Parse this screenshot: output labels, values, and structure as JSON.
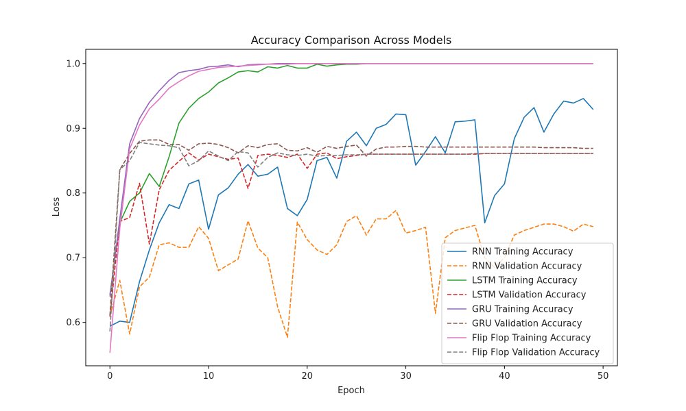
{
  "chart_data": {
    "type": "line",
    "title": "Accuracy Comparison Across Models",
    "xlabel": "Epoch",
    "ylabel": "Loss",
    "xlim": [
      -2.45,
      51.45
    ],
    "ylim": [
      0.533,
      1.022
    ],
    "xticks": [
      0,
      10,
      20,
      30,
      40,
      50
    ],
    "yticks": [
      0.6,
      0.7,
      0.8,
      0.9,
      1.0
    ],
    "ytick_labels": [
      "0.6",
      "0.7",
      "0.8",
      "0.9",
      "1.0"
    ],
    "grid": false,
    "legend_position": "bottom-right",
    "series": [
      {
        "name": "RNN Training Accuracy",
        "color": "#1f77b4",
        "dash": "solid",
        "values": [
          0.594,
          0.602,
          0.6,
          0.663,
          0.712,
          0.754,
          0.782,
          0.776,
          0.814,
          0.82,
          0.744,
          0.797,
          0.808,
          0.829,
          0.844,
          0.826,
          0.829,
          0.84,
          0.776,
          0.765,
          0.79,
          0.85,
          0.855,
          0.823,
          0.88,
          0.894,
          0.873,
          0.9,
          0.906,
          0.922,
          0.921,
          0.843,
          0.864,
          0.887,
          0.862,
          0.91,
          0.911,
          0.913,
          0.754,
          0.796,
          0.814,
          0.884,
          0.917,
          0.932,
          0.894,
          0.922,
          0.942,
          0.939,
          0.946,
          0.929
        ]
      },
      {
        "name": "RNN Validation Accuracy",
        "color": "#ff7f0e",
        "dash": "dashed",
        "values": [
          0.61,
          0.665,
          0.582,
          0.655,
          0.67,
          0.72,
          0.723,
          0.716,
          0.716,
          0.748,
          0.73,
          0.68,
          0.689,
          0.698,
          0.757,
          0.715,
          0.7,
          0.624,
          0.577,
          0.755,
          0.728,
          0.712,
          0.705,
          0.72,
          0.756,
          0.765,
          0.735,
          0.76,
          0.76,
          0.773,
          0.738,
          0.742,
          0.747,
          0.614,
          0.731,
          0.742,
          0.746,
          0.75,
          0.7,
          0.685,
          0.7,
          0.735,
          0.742,
          0.747,
          0.752,
          0.752,
          0.748,
          0.741,
          0.752,
          0.748
        ]
      },
      {
        "name": "LSTM Training Accuracy",
        "color": "#2ca02c",
        "dash": "solid",
        "values": [
          0.643,
          0.754,
          0.787,
          0.8,
          0.83,
          0.81,
          0.856,
          0.908,
          0.931,
          0.946,
          0.956,
          0.97,
          0.978,
          0.987,
          0.989,
          0.987,
          0.995,
          0.993,
          0.997,
          0.993,
          0.993,
          0.999,
          0.996,
          0.998,
          0.999,
          0.999,
          1.0,
          1.0,
          1.0,
          1.0,
          1.0,
          1.0,
          1.0,
          1.0,
          1.0,
          1.0,
          1.0,
          1.0,
          1.0,
          1.0,
          1.0,
          1.0,
          1.0,
          1.0,
          1.0,
          1.0,
          1.0,
          1.0,
          1.0,
          1.0
        ]
      },
      {
        "name": "LSTM Validation Accuracy",
        "color": "#d62728",
        "dash": "dashed",
        "values": [
          0.609,
          0.756,
          0.762,
          0.815,
          0.721,
          0.805,
          0.835,
          0.849,
          0.862,
          0.851,
          0.86,
          0.856,
          0.852,
          0.854,
          0.807,
          0.858,
          0.86,
          0.858,
          0.855,
          0.86,
          0.838,
          0.86,
          0.862,
          0.853,
          0.856,
          0.858,
          0.86,
          0.86,
          0.86,
          0.86,
          0.86,
          0.86,
          0.86,
          0.86,
          0.86,
          0.86,
          0.86,
          0.86,
          0.861,
          0.861,
          0.861,
          0.861,
          0.861,
          0.861,
          0.861,
          0.861,
          0.861,
          0.861,
          0.861,
          0.861
        ]
      },
      {
        "name": "GRU Training Accuracy",
        "color": "#9467bd",
        "dash": "solid",
        "values": [
          0.64,
          0.76,
          0.876,
          0.915,
          0.94,
          0.958,
          0.974,
          0.986,
          0.989,
          0.991,
          0.995,
          0.996,
          0.998,
          0.995,
          0.998,
          0.999,
          0.999,
          1.0,
          1.0,
          1.0,
          1.0,
          1.0,
          1.0,
          1.0,
          1.0,
          1.0,
          1.0,
          1.0,
          1.0,
          1.0,
          1.0,
          1.0,
          1.0,
          1.0,
          1.0,
          1.0,
          1.0,
          1.0,
          1.0,
          1.0,
          1.0,
          1.0,
          1.0,
          1.0,
          1.0,
          1.0,
          1.0,
          1.0,
          1.0,
          1.0
        ]
      },
      {
        "name": "GRU Validation Accuracy",
        "color": "#8c564b",
        "dash": "dashed",
        "values": [
          0.611,
          0.836,
          0.861,
          0.88,
          0.882,
          0.882,
          0.875,
          0.875,
          0.866,
          0.876,
          0.877,
          0.875,
          0.87,
          0.862,
          0.873,
          0.87,
          0.875,
          0.876,
          0.866,
          0.865,
          0.87,
          0.863,
          0.872,
          0.869,
          0.872,
          0.874,
          0.857,
          0.868,
          0.871,
          0.871,
          0.872,
          0.872,
          0.871,
          0.871,
          0.871,
          0.871,
          0.871,
          0.871,
          0.871,
          0.871,
          0.871,
          0.871,
          0.871,
          0.871,
          0.87,
          0.87,
          0.87,
          0.87,
          0.869,
          0.869
        ]
      },
      {
        "name": "Flip Flop Training Accuracy",
        "color": "#e377c2",
        "dash": "solid",
        "values": [
          0.553,
          0.745,
          0.868,
          0.905,
          0.93,
          0.945,
          0.962,
          0.972,
          0.981,
          0.988,
          0.991,
          0.994,
          0.995,
          0.996,
          0.997,
          0.998,
          0.999,
          0.999,
          0.999,
          1.0,
          1.0,
          1.0,
          1.0,
          1.0,
          1.0,
          1.0,
          1.0,
          1.0,
          1.0,
          1.0,
          1.0,
          1.0,
          1.0,
          1.0,
          1.0,
          1.0,
          1.0,
          1.0,
          1.0,
          1.0,
          1.0,
          1.0,
          1.0,
          1.0,
          1.0,
          1.0,
          1.0,
          1.0,
          1.0,
          1.0
        ]
      },
      {
        "name": "Flip Flop Validation Accuracy",
        "color": "#7f7f7f",
        "dash": "dashed",
        "values": [
          0.586,
          0.836,
          0.85,
          0.878,
          0.876,
          0.874,
          0.873,
          0.87,
          0.842,
          0.85,
          0.865,
          0.857,
          0.85,
          0.864,
          0.862,
          0.84,
          0.855,
          0.862,
          0.859,
          0.858,
          0.86,
          0.857,
          0.858,
          0.858,
          0.859,
          0.859,
          0.86,
          0.86,
          0.86,
          0.86,
          0.86,
          0.86,
          0.86,
          0.86,
          0.86,
          0.86,
          0.86,
          0.861,
          0.861,
          0.861,
          0.861,
          0.861,
          0.861,
          0.861,
          0.861,
          0.861,
          0.861,
          0.861,
          0.861,
          0.861
        ]
      }
    ]
  }
}
